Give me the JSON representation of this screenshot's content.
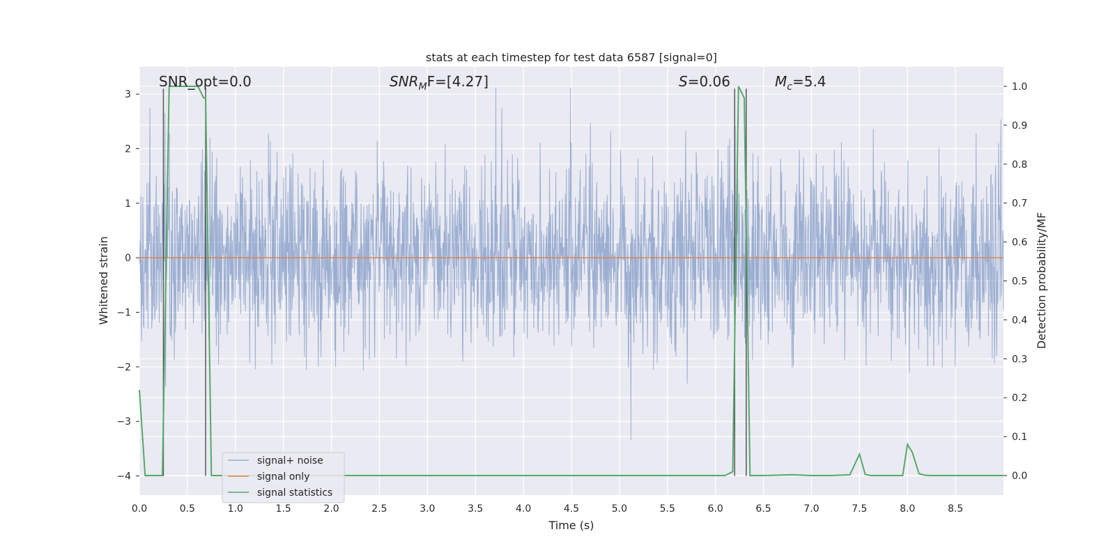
{
  "chart_data": {
    "type": "line",
    "title": "stats at each timestep for test data 6587 [signal=0]",
    "xlabel": "Time (s)",
    "ylabel": "Whitened strain",
    "ylabel_right": "Detection probability/MF",
    "xlim": [
      0,
      9.0
    ],
    "ylim": [
      -4.35,
      3.5
    ],
    "ylim_right": [
      -0.05,
      1.05
    ],
    "x_ticks": [
      0.0,
      0.5,
      1.0,
      1.5,
      2.0,
      2.5,
      3.0,
      3.5,
      4.0,
      4.5,
      5.0,
      5.5,
      6.0,
      6.5,
      7.0,
      7.5,
      8.0,
      8.5
    ],
    "x_tick_labels": [
      "0.0",
      "0.5",
      "1.0",
      "1.5",
      "2.0",
      "2.5",
      "3.0",
      "3.5",
      "4.0",
      "4.5",
      "5.0",
      "5.5",
      "6.0",
      "6.5",
      "7.0",
      "7.5",
      "8.0",
      "8.5"
    ],
    "y_ticks": [
      3,
      2,
      1,
      0,
      -1,
      -2,
      -3,
      -4
    ],
    "y_tick_labels": [
      "3",
      "2",
      "1",
      "0",
      "−1",
      "−2",
      "−3",
      "−4"
    ],
    "y_right_ticks": [
      1.0,
      0.9,
      0.8,
      0.7,
      0.6,
      0.5,
      0.4,
      0.3,
      0.2,
      0.1,
      0.0
    ],
    "y_right_tick_labels": [
      "1.0",
      "0.9",
      "0.8",
      "0.7",
      "0.6",
      "0.5",
      "0.4",
      "0.3",
      "0.2",
      "0.1",
      "0.0"
    ],
    "grid": true,
    "legend_position": "bottom-left",
    "annotations": {
      "snr_opt": "SNR_opt=0.0",
      "snr_mf_prefix": "SNR",
      "snr_mf_sub": "M",
      "snr_mf_suffix": "F=[4.27]",
      "s_label": "S",
      "s_value": "=0.06",
      "mc_label": "M",
      "mc_sub": "c",
      "mc_value": "=5.4"
    },
    "vertical_markers_x": [
      0.25,
      0.69,
      6.2,
      6.32
    ],
    "series": [
      {
        "name": "signal+ noise",
        "color": "#4c72b0",
        "axis": "left",
        "sample_count": 2304,
        "amplitude_rms": 0.85,
        "peak_max": 3.12,
        "peak_min": -3.7
      },
      {
        "name": "signal only",
        "color": "#dd8452",
        "axis": "left",
        "x": [
          0.0,
          9.0
        ],
        "y": [
          0.0,
          0.0
        ]
      },
      {
        "name": "signal statistics",
        "color": "#55a868",
        "axis": "right",
        "x": [
          0.0,
          0.06,
          0.12,
          0.18,
          0.24,
          0.31,
          0.37,
          0.43,
          0.49,
          0.55,
          0.61,
          0.67,
          0.69,
          0.75,
          6.1,
          6.18,
          6.24,
          6.3,
          6.36,
          6.5,
          6.8,
          7.0,
          7.2,
          7.4,
          7.5,
          7.56,
          7.62,
          7.95,
          8.0,
          8.05,
          8.12,
          8.18,
          8.24,
          9.0
        ],
        "y": [
          0.22,
          0.0,
          0.0,
          0.0,
          0.0,
          1.0,
          1.0,
          1.0,
          1.0,
          1.0,
          1.0,
          0.97,
          0.97,
          0.0,
          0.0,
          0.01,
          1.0,
          0.97,
          0.0,
          0.0,
          0.002,
          0.0,
          0.0,
          0.002,
          0.055,
          0.003,
          0.0,
          0.0,
          0.08,
          0.06,
          0.005,
          0.001,
          0.0,
          0.0
        ]
      }
    ]
  },
  "colors": {
    "axes_background": "#eaeaf2",
    "grid": "#ffffff",
    "marker": "#333333"
  }
}
